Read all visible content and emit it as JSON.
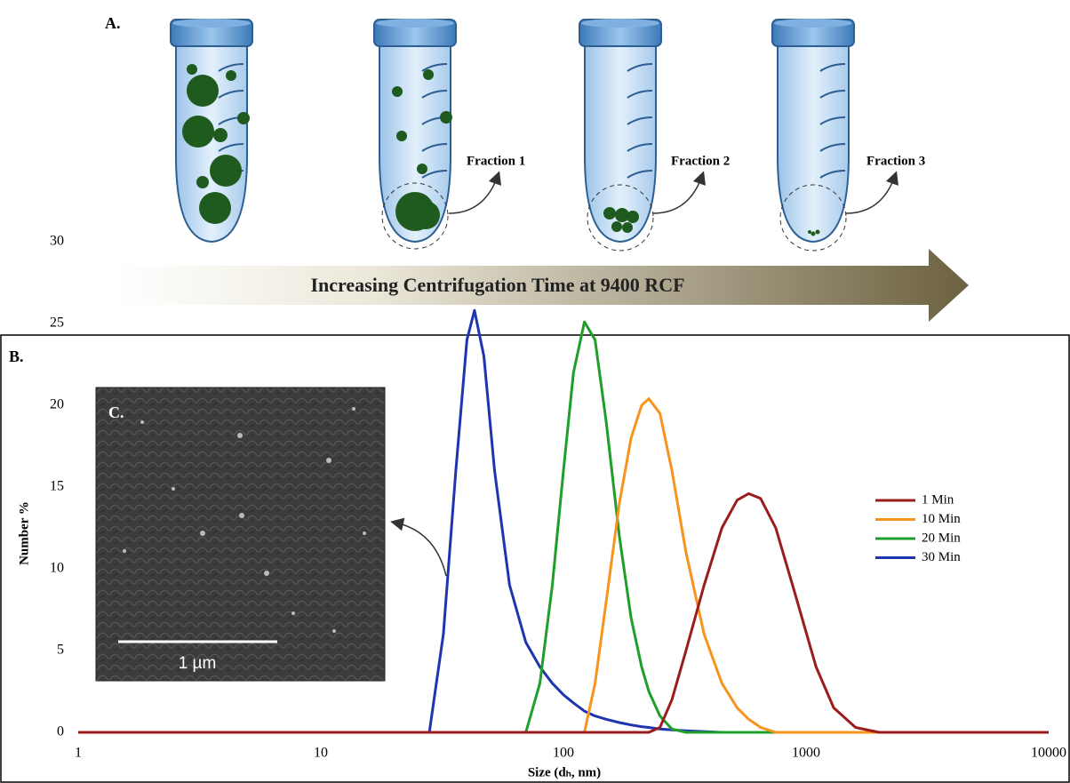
{
  "panel_a": {
    "label": "A.",
    "fractions": [
      "Fraction 1",
      "Fraction 2",
      "Fraction 3"
    ],
    "arrow_text": "Increasing Centrifugation Time at 9400 RCF"
  },
  "panel_b_label": "B.",
  "inset": {
    "label": "C.",
    "scale_bar": "1 µm"
  },
  "chart_data": {
    "type": "line",
    "xlabel": "Size (dₕ, nm)",
    "ylabel": "Number %",
    "xscale": "log",
    "xlim": [
      1,
      10000
    ],
    "xticks": [
      1,
      10,
      100,
      1000,
      10000
    ],
    "ylim": [
      0,
      30
    ],
    "yticks": [
      0,
      5,
      10,
      15,
      20,
      25,
      30
    ],
    "legend": "right",
    "x": [
      1,
      20,
      28,
      32,
      36,
      40,
      43,
      47,
      52,
      60,
      70,
      80,
      90,
      100,
      110,
      122,
      135,
      150,
      170,
      190,
      210,
      225,
      250,
      280,
      320,
      380,
      450,
      520,
      580,
      650,
      750,
      900,
      1100,
      1300,
      1600,
      2000,
      10000
    ],
    "series": [
      {
        "name": "1 Min",
        "color": "#9b1c1c",
        "values": [
          0,
          0,
          0,
          0,
          0,
          0,
          0,
          0,
          0,
          0,
          0,
          0,
          0,
          0,
          0,
          0,
          0,
          0,
          0,
          0,
          0,
          0,
          0.3,
          2,
          5,
          9,
          12.5,
          14.2,
          14.6,
          14.3,
          12.5,
          8.5,
          4,
          1.5,
          0.3,
          0,
          0
        ]
      },
      {
        "name": "10 Min",
        "color": "#f7941d",
        "values": [
          0,
          0,
          0,
          0,
          0,
          0,
          0,
          0,
          0,
          0,
          0,
          0,
          0,
          0,
          0,
          0,
          3,
          8,
          14,
          18,
          20,
          20.4,
          19.5,
          16,
          11,
          6,
          3,
          1.5,
          0.8,
          0.3,
          0,
          0,
          0,
          0,
          0,
          0,
          0
        ]
      },
      {
        "name": "20 Min",
        "color": "#1f9e2a",
        "values": [
          0,
          0,
          0,
          0,
          0,
          0,
          0,
          0,
          0,
          0,
          0,
          3,
          9,
          16,
          22,
          25.1,
          24,
          19,
          12,
          7,
          4,
          2.5,
          1,
          0.2,
          0,
          0,
          0,
          0,
          0,
          0,
          0,
          0,
          0,
          0,
          0,
          0,
          0
        ]
      },
      {
        "name": "30 Min",
        "color": "#1f35b0",
        "values": [
          0,
          0,
          0,
          6,
          16,
          24,
          25.8,
          23,
          16,
          9,
          5.5,
          4,
          3,
          2.3,
          1.8,
          1.3,
          1,
          0.8,
          0.6,
          0.45,
          0.35,
          0.3,
          0.2,
          0.15,
          0.1,
          0.05,
          0,
          0,
          0,
          0,
          0,
          0,
          0,
          0,
          0,
          0,
          0
        ]
      }
    ]
  }
}
